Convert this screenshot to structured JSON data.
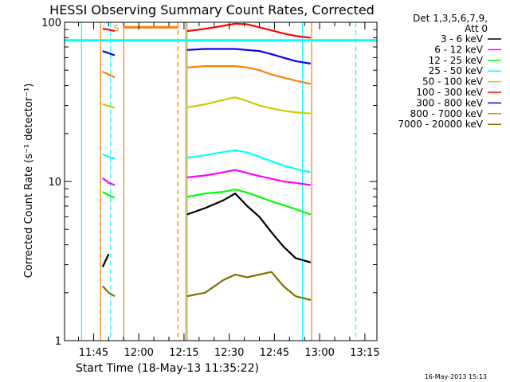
{
  "chart_data": {
    "type": "line",
    "title": "HESSI Observing Summary Count Rates, Corrected",
    "xlabel": "Start Time (18-May-13 11:35:22)",
    "ylabel": "Corrected Count Rate (s⁻¹ detector⁻¹)",
    "yscale": "log",
    "xlim": [
      "11:35:22",
      "13:19:00"
    ],
    "ylim": [
      1,
      100
    ],
    "x_ticks": [
      "11:45",
      "12:00",
      "12:15",
      "12:30",
      "12:45",
      "13:00",
      "13:15"
    ],
    "y_ticks": [
      "1",
      "10",
      "100"
    ],
    "legend_header": [
      "Det 1,3,5,6,7,9,",
      "Att 0"
    ],
    "legend_position": "right",
    "timestamp": "16-May-2013 15:13",
    "flag_label": "S",
    "series": [
      {
        "name": "3 - 6 keV",
        "color": "#000000",
        "points": [
          [
            "11:48:00",
            2.9
          ],
          [
            "11:50:00",
            3.5
          ],
          [
            "12:16:00",
            6.2
          ],
          [
            "12:22:00",
            6.8
          ],
          [
            "12:28:00",
            7.6
          ],
          [
            "12:32:00",
            8.4
          ],
          [
            "12:36:00",
            7.0
          ],
          [
            "12:40:00",
            6.0
          ],
          [
            "12:44:00",
            4.8
          ],
          [
            "12:48:00",
            3.9
          ],
          [
            "12:52:00",
            3.3
          ],
          [
            "12:57:00",
            3.1
          ]
        ]
      },
      {
        "name": "6 - 12 keV",
        "color": "#ff00ff",
        "points": [
          [
            "11:48:00",
            10.5
          ],
          [
            "11:50:00",
            9.8
          ],
          [
            "11:52:00",
            9.5
          ],
          [
            "12:16:00",
            10.6
          ],
          [
            "12:22:00",
            10.9
          ],
          [
            "12:28:00",
            11.4
          ],
          [
            "12:32:00",
            11.8
          ],
          [
            "12:36:00",
            11.3
          ],
          [
            "12:40:00",
            10.8
          ],
          [
            "12:44:00",
            10.4
          ],
          [
            "12:48:00",
            10.0
          ],
          [
            "12:52:00",
            9.8
          ],
          [
            "12:57:00",
            9.5
          ]
        ]
      },
      {
        "name": "12 - 25 keV",
        "color": "#00ff00",
        "points": [
          [
            "11:48:00",
            8.6
          ],
          [
            "11:50:00",
            8.2
          ],
          [
            "11:52:00",
            7.9
          ],
          [
            "12:16:00",
            8.0
          ],
          [
            "12:22:00",
            8.4
          ],
          [
            "12:28:00",
            8.6
          ],
          [
            "12:32:00",
            8.9
          ],
          [
            "12:36:00",
            8.5
          ],
          [
            "12:40:00",
            8.0
          ],
          [
            "12:44:00",
            7.5
          ],
          [
            "12:48:00",
            7.1
          ],
          [
            "12:52:00",
            6.7
          ],
          [
            "12:57:00",
            6.2
          ]
        ]
      },
      {
        "name": "25 - 50 keV",
        "color": "#00ffff",
        "points": [
          [
            "11:48:00",
            14.8
          ],
          [
            "11:50:00",
            14.3
          ],
          [
            "11:52:00",
            13.9
          ],
          [
            "12:16:00",
            14.1
          ],
          [
            "12:22:00",
            14.6
          ],
          [
            "12:28:00",
            15.3
          ],
          [
            "12:32:00",
            15.7
          ],
          [
            "12:36:00",
            15.2
          ],
          [
            "12:40:00",
            14.3
          ],
          [
            "12:44:00",
            13.4
          ],
          [
            "12:48:00",
            12.6
          ],
          [
            "12:52:00",
            12.0
          ],
          [
            "12:57:00",
            11.4
          ]
        ]
      },
      {
        "name": "50 - 100 keV",
        "color": "#d0c800",
        "points": [
          [
            "11:48:00",
            30.5
          ],
          [
            "11:50:00",
            29.8
          ],
          [
            "11:52:00",
            29.0
          ],
          [
            "12:16:00",
            29.2
          ],
          [
            "12:22:00",
            30.5
          ],
          [
            "12:28:00",
            32.5
          ],
          [
            "12:32:00",
            33.8
          ],
          [
            "12:36:00",
            32.0
          ],
          [
            "12:40:00",
            30.0
          ],
          [
            "12:44:00",
            28.8
          ],
          [
            "12:48:00",
            27.8
          ],
          [
            "12:52:00",
            27.2
          ],
          [
            "12:57:00",
            26.7
          ]
        ]
      },
      {
        "name": "100 - 300 keV",
        "color": "#ff0000",
        "points": [
          [
            "11:48:00",
            91
          ],
          [
            "11:50:00",
            90
          ],
          [
            "11:52:00",
            88
          ],
          [
            "12:16:00",
            88
          ],
          [
            "12:22:00",
            91
          ],
          [
            "12:28:00",
            95
          ],
          [
            "12:32:00",
            98
          ],
          [
            "12:36:00",
            97
          ],
          [
            "12:40:00",
            93
          ],
          [
            "12:44:00",
            89
          ],
          [
            "12:48:00",
            85
          ],
          [
            "12:52:00",
            82
          ],
          [
            "12:57:00",
            80
          ]
        ]
      },
      {
        "name": "300 - 800 keV",
        "color": "#0000ff",
        "points": [
          [
            "11:48:00",
            66
          ],
          [
            "11:50:00",
            64
          ],
          [
            "11:52:00",
            62
          ],
          [
            "12:16:00",
            67
          ],
          [
            "12:22:00",
            68
          ],
          [
            "12:28:00",
            68
          ],
          [
            "12:32:00",
            68
          ],
          [
            "12:36:00",
            67
          ],
          [
            "12:40:00",
            66
          ],
          [
            "12:44:00",
            63
          ],
          [
            "12:48:00",
            60
          ],
          [
            "12:52:00",
            57
          ],
          [
            "12:57:00",
            55
          ]
        ]
      },
      {
        "name": "800 - 7000 keV",
        "color": "#ff7f00",
        "points": [
          [
            "11:48:00",
            49
          ],
          [
            "11:50:00",
            47
          ],
          [
            "11:52:00",
            45
          ],
          [
            "12:16:00",
            52
          ],
          [
            "12:22:00",
            53
          ],
          [
            "12:28:00",
            53
          ],
          [
            "12:32:00",
            53
          ],
          [
            "12:36:00",
            52
          ],
          [
            "12:40:00",
            50
          ],
          [
            "12:44:00",
            47
          ],
          [
            "12:48:00",
            45
          ],
          [
            "12:52:00",
            43
          ],
          [
            "12:57:00",
            41
          ]
        ]
      },
      {
        "name": "7000 - 20000 keV",
        "color": "#807000",
        "points": [
          [
            "11:48:00",
            2.2
          ],
          [
            "11:50:00",
            2.0
          ],
          [
            "11:52:00",
            1.9
          ],
          [
            "12:16:00",
            1.9
          ],
          [
            "12:22:00",
            2.0
          ],
          [
            "12:28:00",
            2.4
          ],
          [
            "12:32:00",
            2.6
          ],
          [
            "12:36:00",
            2.5
          ],
          [
            "12:40:00",
            2.6
          ],
          [
            "12:44:00",
            2.7
          ],
          [
            "12:48:00",
            2.2
          ],
          [
            "12:52:00",
            1.9
          ],
          [
            "12:57:00",
            1.8
          ]
        ]
      }
    ],
    "horizontal_lines": [
      {
        "color": "#00ffff",
        "y": 77,
        "x": [
          "11:35:22",
          "13:19:00"
        ]
      },
      {
        "color": "#ff7f00",
        "y": 93,
        "x": [
          "11:55:00",
          "12:13:00"
        ]
      }
    ],
    "vertical_lines": [
      {
        "color": "#00ffff",
        "x": "11:41:00",
        "style": "solid"
      },
      {
        "color": "#ff7f00",
        "x": "11:47:20",
        "style": "solid"
      },
      {
        "color": "#00ffff",
        "x": "11:50:40",
        "style": "dashed"
      },
      {
        "color": "#ff7f00",
        "x": "11:55:00",
        "style": "solid"
      },
      {
        "color": "#ff7f00",
        "x": "12:13:00",
        "style": "dashed"
      },
      {
        "color": "#00ffff",
        "x": "12:15:30",
        "style": "solid"
      },
      {
        "color": "#ff7f00",
        "x": "12:16:00",
        "style": "solid"
      },
      {
        "color": "#00ffff",
        "x": "12:54:20",
        "style": "solid"
      },
      {
        "color": "#ff7f00",
        "x": "12:57:20",
        "style": "solid"
      },
      {
        "color": "#00ffff",
        "x": "13:12:00",
        "style": "dashed"
      }
    ]
  }
}
